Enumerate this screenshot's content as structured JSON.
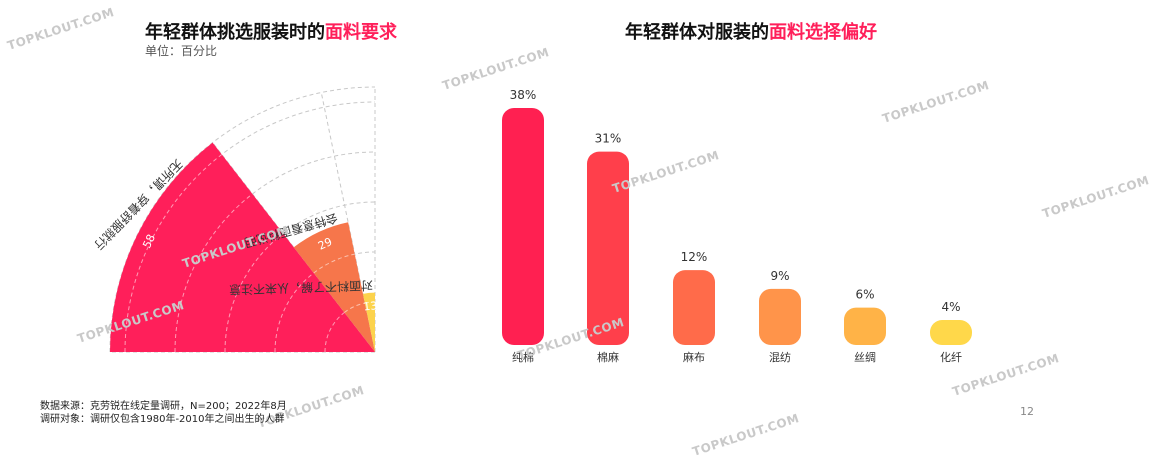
{
  "left_title": {
    "main": "年轻群体挑选服装时的",
    "highlight": "面料要求"
  },
  "unit": "单位：百分比",
  "right_title": {
    "main": "年轻群体对服装的",
    "highlight": "面料选择偏好"
  },
  "watermark": "TOPKLOUT.COM",
  "footer": {
    "source": "数据来源：克劳锐在线定量调研，N=200；2022年8月",
    "subject": "调研对象：调研仅包含1980年-2010年之间出生的人群"
  },
  "page_number": "12",
  "chart_data": [
    {
      "type": "pie",
      "title": "年轻群体挑选服装时的面料要求",
      "subtitle": "单位：百分比",
      "slices": [
        {
          "label": "无所谓，穿着舒服就行",
          "value": 58,
          "color": "#ff1f5a"
        },
        {
          "label": "会特意看面料说明",
          "value": 29,
          "color": "#f6764b"
        },
        {
          "label": "对面料不了解，从来不注意",
          "value": 13,
          "color": "#fcd34d"
        }
      ]
    },
    {
      "type": "bar",
      "title": "年轻群体对服装的面料选择偏好",
      "categories": [
        "纯棉",
        "棉麻",
        "麻布",
        "混纺",
        "丝绸",
        "化纤"
      ],
      "values": [
        38,
        31,
        12,
        9,
        6,
        4
      ],
      "value_labels": [
        "38%",
        "31%",
        "12%",
        "9%",
        "6%",
        "4%"
      ],
      "colors": [
        "#ff2051",
        "#ff3f4b",
        "#ff6b4a",
        "#ff944a",
        "#ffb347",
        "#ffd84a"
      ],
      "ylim": [
        0,
        38
      ]
    }
  ]
}
